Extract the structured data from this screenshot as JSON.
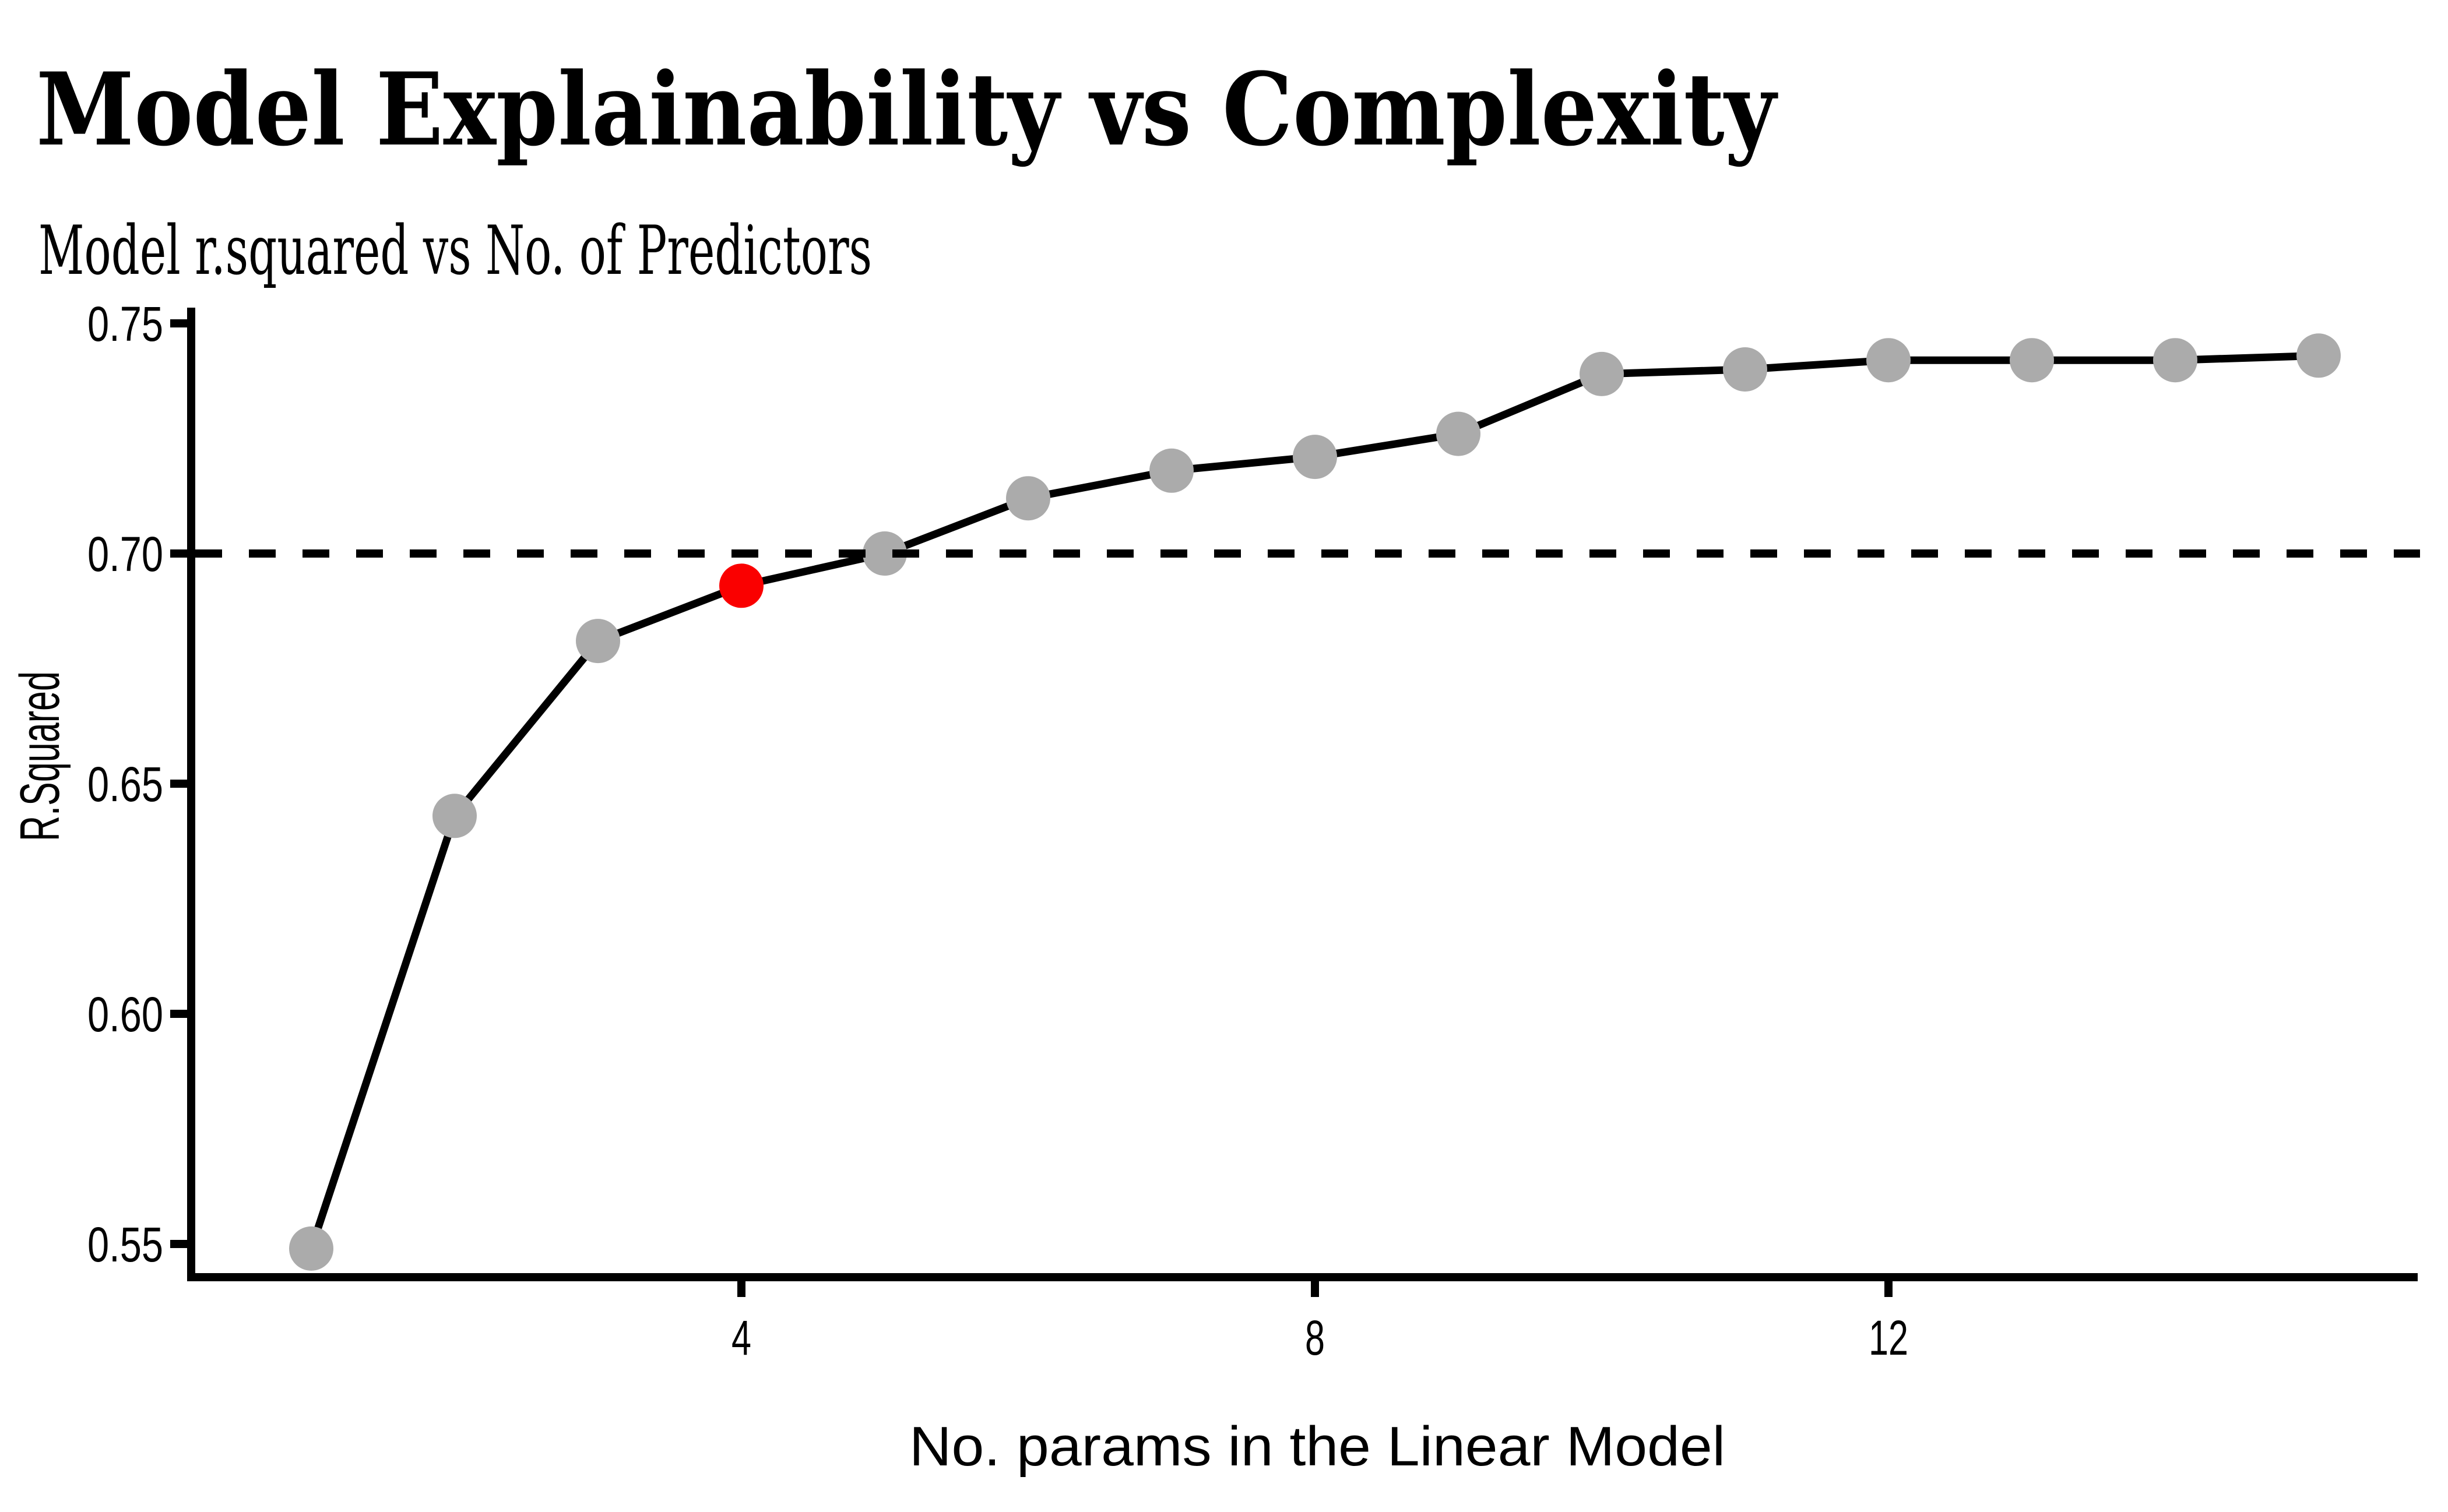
{
  "chart_data": {
    "type": "line",
    "title": "Model Explainability vs Complexity",
    "subtitle": "Model r.squared vs No. of Predictors",
    "xlabel": "No. params in the Linear Model",
    "ylabel": "R.Squared",
    "x": [
      1,
      2,
      3,
      4,
      5,
      6,
      7,
      8,
      9,
      10,
      11,
      12,
      13,
      14,
      15
    ],
    "y": [
      0.549,
      0.643,
      0.681,
      0.693,
      0.7,
      0.712,
      0.718,
      0.721,
      0.726,
      0.739,
      0.74,
      0.742,
      0.742,
      0.742,
      0.743
    ],
    "highlight_point": {
      "x": 4,
      "y": 0.693,
      "color": "#fa0000"
    },
    "reference_line": {
      "y": 0.7,
      "style": "dashed",
      "color": "#000000"
    },
    "x_ticks": {
      "values": [
        4,
        8,
        12
      ],
      "labels": [
        "4",
        "8",
        "12"
      ]
    },
    "y_ticks": {
      "values": [
        0.55,
        0.6,
        0.65,
        0.7,
        0.75
      ],
      "labels": [
        "0.55",
        "0.60",
        "0.65",
        "0.70",
        "0.75"
      ]
    },
    "xlim": [
      0.2,
      15.7
    ],
    "ylim": [
      0.542,
      0.753
    ],
    "grid": false,
    "legend": false,
    "colors": {
      "line": "#000000",
      "point": "#ababab",
      "highlight": "#fa0000",
      "axis": "#000000",
      "text": "#000000",
      "background": "#ffffff"
    }
  }
}
